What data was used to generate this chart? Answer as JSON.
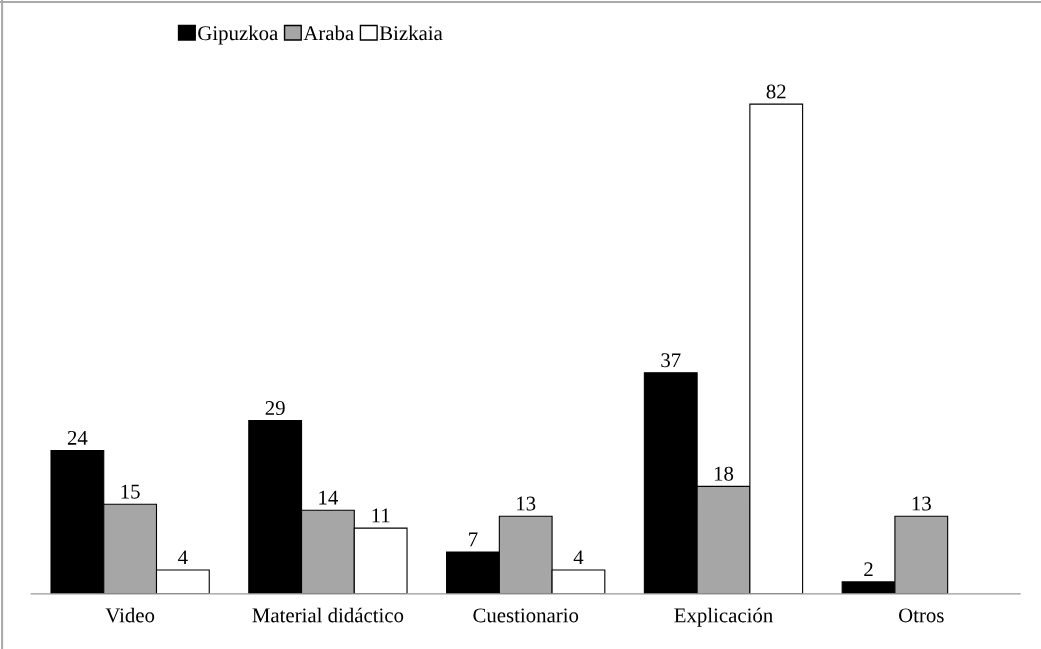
{
  "chart_data": {
    "type": "bar",
    "categories": [
      "Video",
      "Material didáctico",
      "Cuestionario",
      "Explicación",
      "Otros"
    ],
    "series": [
      {
        "name": "Gipuzkoa",
        "color": "#000000",
        "values": [
          24,
          29,
          7,
          37,
          2
        ],
        "value_labels": [
          "24",
          "29",
          "7",
          "37",
          "2"
        ]
      },
      {
        "name": "Araba",
        "color": "#a6a6a6",
        "values": [
          15,
          14,
          13,
          18,
          13
        ],
        "value_labels": [
          "15",
          "14",
          "13",
          "18",
          "13"
        ]
      },
      {
        "name": "Bizkaia",
        "color": "#ffffff",
        "values": [
          4,
          11,
          4,
          82,
          0
        ],
        "value_labels": [
          "4",
          "11",
          "4",
          "82",
          null
        ]
      }
    ],
    "legend": "top left",
    "grid": false
  }
}
